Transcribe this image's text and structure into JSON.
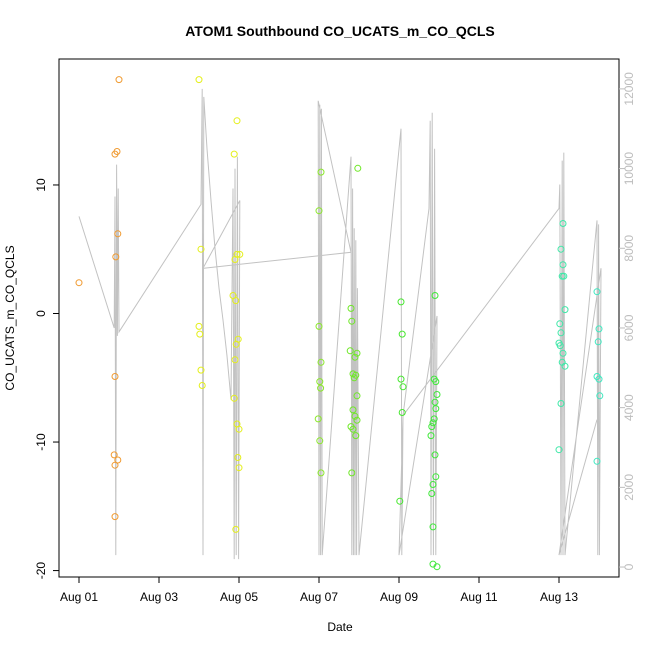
{
  "chart_data": {
    "type": "scatter",
    "title": "ATOM1 Southbound CO_UCATS_m_CO_QCLS",
    "xlabel": "Date",
    "ylabel": "CO_UCATS_m_CO_QCLS",
    "x_ticks": [
      "Aug 01",
      "Aug 03",
      "Aug 05",
      "Aug 07",
      "Aug 09",
      "Aug 11",
      "Aug 13"
    ],
    "y_ticks": [
      "-20",
      "-10",
      "0",
      "10"
    ],
    "y2_ticks": [
      "0",
      "2000",
      "4000",
      "6000",
      "8000",
      "10000",
      "12000"
    ],
    "xlim": [
      -0.5,
      13.5
    ],
    "ylim": [
      -20.5,
      19.8
    ],
    "y2lim": [
      -250,
      12750
    ],
    "grid": false,
    "points": [
      {
        "x": 0.0,
        "y": 2.4,
        "color": "#f09a30"
      },
      {
        "x": 0.9,
        "y": 12.4,
        "color": "#f09a30"
      },
      {
        "x": 0.95,
        "y": 12.6,
        "color": "#f09a30"
      },
      {
        "x": 1.0,
        "y": 18.2,
        "color": "#f09a30"
      },
      {
        "x": 0.97,
        "y": 6.2,
        "color": "#f09a30"
      },
      {
        "x": 0.92,
        "y": 4.4,
        "color": "#f09a30"
      },
      {
        "x": 0.9,
        "y": -4.9,
        "color": "#f09a30"
      },
      {
        "x": 0.88,
        "y": -11.0,
        "color": "#f09a30"
      },
      {
        "x": 0.9,
        "y": -11.8,
        "color": "#f09a30"
      },
      {
        "x": 0.97,
        "y": -11.4,
        "color": "#f09a30"
      },
      {
        "x": 0.9,
        "y": -15.8,
        "color": "#f09a30"
      },
      {
        "x": 3.0,
        "y": 18.2,
        "color": "#e4ef1a"
      },
      {
        "x": 3.05,
        "y": 5.0,
        "color": "#e4ef1a"
      },
      {
        "x": 3.0,
        "y": -1.0,
        "color": "#e4ef1a"
      },
      {
        "x": 3.02,
        "y": -1.6,
        "color": "#e4ef1a"
      },
      {
        "x": 3.05,
        "y": -4.4,
        "color": "#e4ef1a"
      },
      {
        "x": 3.08,
        "y": -5.6,
        "color": "#e4ef1a"
      },
      {
        "x": 3.88,
        "y": 12.4,
        "color": "#e4ef1a"
      },
      {
        "x": 3.95,
        "y": 15.0,
        "color": "#e4ef1a"
      },
      {
        "x": 3.9,
        "y": 4.2,
        "color": "#e4ef1a"
      },
      {
        "x": 3.95,
        "y": 4.6,
        "color": "#e4ef1a"
      },
      {
        "x": 4.02,
        "y": 4.6,
        "color": "#e4ef1a"
      },
      {
        "x": 3.85,
        "y": 1.4,
        "color": "#e4ef1a"
      },
      {
        "x": 3.92,
        "y": 1.0,
        "color": "#e4ef1a"
      },
      {
        "x": 3.98,
        "y": -2.0,
        "color": "#e4ef1a"
      },
      {
        "x": 3.93,
        "y": -2.4,
        "color": "#e4ef1a"
      },
      {
        "x": 3.9,
        "y": -3.6,
        "color": "#e4ef1a"
      },
      {
        "x": 3.88,
        "y": -6.6,
        "color": "#e4ef1a"
      },
      {
        "x": 3.95,
        "y": -8.6,
        "color": "#e4ef1a"
      },
      {
        "x": 4.0,
        "y": -9.0,
        "color": "#e4ef1a"
      },
      {
        "x": 3.97,
        "y": -11.2,
        "color": "#e4ef1a"
      },
      {
        "x": 4.0,
        "y": -12.0,
        "color": "#e4ef1a"
      },
      {
        "x": 3.92,
        "y": -16.8,
        "color": "#e4ef1a"
      },
      {
        "x": 6.0,
        "y": 8.0,
        "color": "#8be82a"
      },
      {
        "x": 6.05,
        "y": 11.0,
        "color": "#8be82a"
      },
      {
        "x": 6.0,
        "y": -1.0,
        "color": "#8be82a"
      },
      {
        "x": 6.05,
        "y": -3.8,
        "color": "#8be82a"
      },
      {
        "x": 6.02,
        "y": -5.3,
        "color": "#8be82a"
      },
      {
        "x": 6.04,
        "y": -5.8,
        "color": "#8be82a"
      },
      {
        "x": 5.98,
        "y": -8.2,
        "color": "#8be82a"
      },
      {
        "x": 6.02,
        "y": -9.9,
        "color": "#8be82a"
      },
      {
        "x": 6.05,
        "y": -12.4,
        "color": "#8be82a"
      },
      {
        "x": 6.8,
        "y": 0.4,
        "color": "#6fe827"
      },
      {
        "x": 6.82,
        "y": -0.6,
        "color": "#6fe827"
      },
      {
        "x": 6.78,
        "y": -2.9,
        "color": "#6fe827"
      },
      {
        "x": 6.9,
        "y": -3.4,
        "color": "#6fe827"
      },
      {
        "x": 6.95,
        "y": -3.1,
        "color": "#6fe827"
      },
      {
        "x": 6.85,
        "y": -4.7,
        "color": "#6fe827"
      },
      {
        "x": 6.92,
        "y": -4.8,
        "color": "#6fe827"
      },
      {
        "x": 6.88,
        "y": -5.0,
        "color": "#6fe827"
      },
      {
        "x": 6.95,
        "y": -6.4,
        "color": "#6fe827"
      },
      {
        "x": 6.85,
        "y": -7.5,
        "color": "#6fe827"
      },
      {
        "x": 6.9,
        "y": -8.0,
        "color": "#6fe827"
      },
      {
        "x": 6.95,
        "y": -8.3,
        "color": "#6fe827"
      },
      {
        "x": 6.8,
        "y": -8.8,
        "color": "#6fe827"
      },
      {
        "x": 6.85,
        "y": -9.0,
        "color": "#6fe827"
      },
      {
        "x": 6.92,
        "y": -9.5,
        "color": "#6fe827"
      },
      {
        "x": 6.82,
        "y": -12.4,
        "color": "#6fe827"
      },
      {
        "x": 6.97,
        "y": 11.3,
        "color": "#6fe827"
      },
      {
        "x": 8.05,
        "y": 0.9,
        "color": "#46e82e"
      },
      {
        "x": 8.08,
        "y": -1.6,
        "color": "#46e82e"
      },
      {
        "x": 8.05,
        "y": -5.1,
        "color": "#46e82e"
      },
      {
        "x": 8.1,
        "y": -5.7,
        "color": "#46e82e"
      },
      {
        "x": 8.08,
        "y": -7.7,
        "color": "#46e82e"
      },
      {
        "x": 8.02,
        "y": -14.6,
        "color": "#46e82e"
      },
      {
        "x": 8.9,
        "y": 1.4,
        "color": "#3fe83a"
      },
      {
        "x": 8.88,
        "y": -5.1,
        "color": "#3fe83a"
      },
      {
        "x": 8.92,
        "y": -5.3,
        "color": "#3fe83a"
      },
      {
        "x": 8.95,
        "y": -6.3,
        "color": "#3fe83a"
      },
      {
        "x": 8.9,
        "y": -6.9,
        "color": "#3fe83a"
      },
      {
        "x": 8.92,
        "y": -7.4,
        "color": "#3fe83a"
      },
      {
        "x": 8.88,
        "y": -8.2,
        "color": "#3fe83a"
      },
      {
        "x": 8.85,
        "y": -8.5,
        "color": "#3fe83a"
      },
      {
        "x": 8.82,
        "y": -8.8,
        "color": "#3fe83a"
      },
      {
        "x": 8.8,
        "y": -9.5,
        "color": "#3fe83a"
      },
      {
        "x": 8.9,
        "y": -11.0,
        "color": "#3fe83a"
      },
      {
        "x": 8.92,
        "y": -12.7,
        "color": "#3fe83a"
      },
      {
        "x": 8.85,
        "y": -13.3,
        "color": "#3fe83a"
      },
      {
        "x": 8.82,
        "y": -14.0,
        "color": "#3fe83a"
      },
      {
        "x": 8.85,
        "y": -16.6,
        "color": "#3fe83a"
      },
      {
        "x": 8.85,
        "y": -19.5,
        "color": "#3fe83a"
      },
      {
        "x": 8.95,
        "y": -19.7,
        "color": "#3fe83a"
      },
      {
        "x": 12.1,
        "y": 7.0,
        "color": "#3fe8a8"
      },
      {
        "x": 12.05,
        "y": 5.0,
        "color": "#3fe8a8"
      },
      {
        "x": 12.1,
        "y": 3.8,
        "color": "#3fe8a8"
      },
      {
        "x": 12.08,
        "y": 2.9,
        "color": "#3fe8a8"
      },
      {
        "x": 12.12,
        "y": 2.9,
        "color": "#3fe8a8"
      },
      {
        "x": 12.15,
        "y": 0.3,
        "color": "#3fe8a8"
      },
      {
        "x": 12.02,
        "y": -0.8,
        "color": "#3fe8a8"
      },
      {
        "x": 12.05,
        "y": -1.5,
        "color": "#3fe8a8"
      },
      {
        "x": 12.0,
        "y": -2.3,
        "color": "#3fe8a8"
      },
      {
        "x": 12.03,
        "y": -2.5,
        "color": "#3fe8a8"
      },
      {
        "x": 12.1,
        "y": -3.1,
        "color": "#3fe8a8"
      },
      {
        "x": 12.08,
        "y": -3.8,
        "color": "#3fe8a8"
      },
      {
        "x": 12.15,
        "y": -4.1,
        "color": "#3fe8a8"
      },
      {
        "x": 12.05,
        "y": -7.0,
        "color": "#3fe8a8"
      },
      {
        "x": 12.0,
        "y": -10.6,
        "color": "#3fe8a8"
      },
      {
        "x": 12.95,
        "y": 1.7,
        "color": "#3fe8c0"
      },
      {
        "x": 13.0,
        "y": -1.2,
        "color": "#3fe8c0"
      },
      {
        "x": 12.98,
        "y": -2.2,
        "color": "#3fe8c0"
      },
      {
        "x": 12.95,
        "y": -4.9,
        "color": "#3fe8c0"
      },
      {
        "x": 13.0,
        "y": -5.1,
        "color": "#3fe8c0"
      },
      {
        "x": 13.02,
        "y": -6.4,
        "color": "#3fe8c0"
      },
      {
        "x": 12.95,
        "y": -11.5,
        "color": "#3fe8c0"
      }
    ],
    "altitude_series": {
      "name": "",
      "axis": "right",
      "color": "#c2c2c2",
      "x": [
        0.0,
        0.88,
        0.9,
        0.92,
        0.94,
        0.96,
        0.98,
        1.0,
        3.05,
        3.08,
        3.1,
        3.12,
        3.2,
        3.3,
        3.4,
        3.5,
        3.6,
        3.7,
        3.8,
        3.85,
        3.88,
        3.9,
        3.93,
        3.96,
        3.99,
        4.02,
        3.1,
        3.12,
        6.8,
        5.98,
        6.0,
        6.02,
        6.04,
        6.06,
        6.08,
        6.8,
        6.82,
        6.84,
        6.86,
        6.88,
        6.9,
        6.92,
        6.94,
        6.96,
        7.0,
        8.05,
        8.07,
        8.1,
        8.75,
        8.78,
        8.8,
        8.83,
        8.86,
        8.89,
        8.92,
        8.95,
        8.0,
        8.1,
        12.0,
        12.02,
        12.05,
        12.08,
        12.1,
        12.12,
        12.15,
        12.95,
        12.97,
        12.99,
        13.01,
        13.05,
        12.0,
        12.95
      ],
      "y": [
        8800,
        6000,
        9300,
        300,
        10100,
        5800,
        9500,
        5900,
        9100,
        12000,
        300,
        11800,
        10500,
        9200,
        8000,
        7000,
        6200,
        5300,
        4200,
        9500,
        200,
        10000,
        300,
        10300,
        200,
        9200,
        7500,
        7500,
        7900,
        11700,
        300,
        11600,
        300,
        11500,
        300,
        10300,
        300,
        9500,
        300,
        8500,
        300,
        8200,
        300,
        7000,
        300,
        11000,
        300,
        3800,
        9000,
        11200,
        300,
        11400,
        300,
        10500,
        300,
        6300,
        300,
        3800,
        9000,
        9600,
        300,
        10200,
        300,
        10400,
        300,
        8700,
        300,
        8600,
        300,
        7500,
        300,
        3700
      ]
    }
  }
}
